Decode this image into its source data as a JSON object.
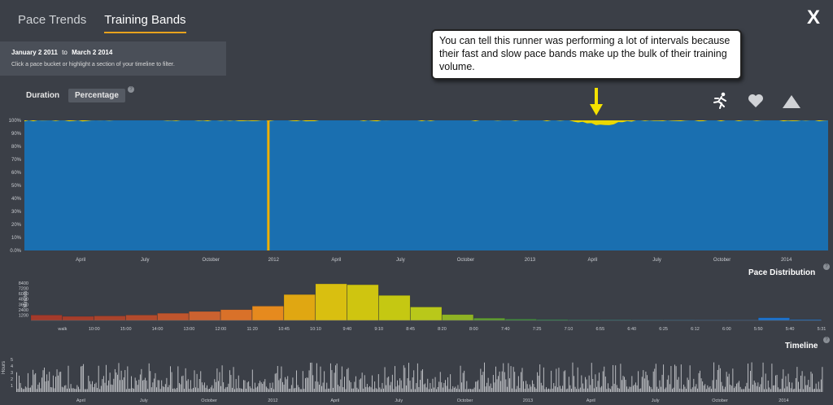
{
  "tabs": [
    {
      "label": "Pace Trends",
      "active": false
    },
    {
      "label": "Training Bands",
      "active": true
    }
  ],
  "close_label": "X",
  "date_range": {
    "start": "January 2 2011",
    "to": "to",
    "end": "March 2 2014",
    "hint": "Click a pace bucket or highlight a section of your timeline to filter."
  },
  "modes": {
    "duration": "Duration",
    "percentage": "Percentage",
    "help": "?"
  },
  "annotation": "You can tell this runner was performing a lot of intervals because their fast and slow pace bands make up the bulk of their training volume.",
  "icons": [
    "runner-icon",
    "heart-icon",
    "mountain-icon"
  ],
  "bands_chart": {
    "y_ticks": [
      "0.0%",
      "10%",
      "20%",
      "30%",
      "40%",
      "50%",
      "60%",
      "70%",
      "80%",
      "90%",
      "100%"
    ],
    "x_ticks": [
      "April",
      "July",
      "October",
      "2012",
      "April",
      "July",
      "October",
      "2013",
      "April",
      "July",
      "October",
      "2014"
    ]
  },
  "pace_distribution": {
    "title": "Pace Distribution",
    "ylabel": "Minutes",
    "y_ticks": [
      "1200",
      "2400",
      "3600",
      "4800",
      "6000",
      "7200",
      "8400"
    ]
  },
  "timeline": {
    "title": "Timeline",
    "ylabel": "Hours",
    "y_ticks": [
      "1",
      "2",
      "3",
      "4",
      "5"
    ],
    "x_ticks": [
      "April",
      "July",
      "October",
      "2012",
      "April",
      "July",
      "October",
      "2013",
      "April",
      "July",
      "October",
      "2014"
    ]
  },
  "chart_data": [
    {
      "type": "bar",
      "ylabel": "Minutes",
      "ylim": [
        0,
        8400
      ],
      "categories": [
        "walk",
        "10:00",
        "15:00",
        "14:00",
        "13:00",
        "12:00",
        "11:20",
        "10:45",
        "10:10",
        "9:40",
        "9:10",
        "8:45",
        "8:20",
        "8:00",
        "7:40",
        "7:25",
        "7:10",
        "6:55",
        "6:40",
        "6:25",
        "6:12",
        "6:00",
        "5:50",
        "5:40",
        "5:31"
      ],
      "values": [
        1200,
        900,
        1000,
        1200,
        1600,
        2000,
        2400,
        3200,
        5800,
        8200,
        8000,
        5600,
        3000,
        1300,
        500,
        300,
        200,
        150,
        150,
        120,
        120,
        100,
        100,
        600,
        200
      ],
      "colors": [
        "#a43a2a",
        "#a63d2a",
        "#aa432b",
        "#b34a2c",
        "#bf552d",
        "#cb6230",
        "#d97129",
        "#e68a1e",
        "#e0a712",
        "#d9bf10",
        "#cfc510",
        "#c5c812",
        "#b9c81a",
        "#8fb324",
        "#5f9e2e",
        "#3f8f3a",
        "#2f8a4a",
        "#2a8160",
        "#277a74",
        "#247488",
        "#216d9a",
        "#1f68aa",
        "#1d64b8",
        "#1c72cc",
        "#1a6fc6"
      ]
    }
  ]
}
